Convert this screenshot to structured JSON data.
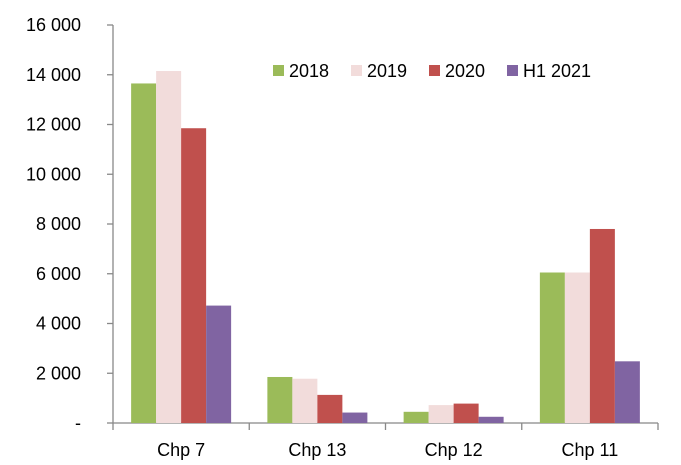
{
  "chart_data": {
    "type": "bar",
    "categories": [
      "Chp 7",
      "Chp 13",
      "Chp 12",
      "Chp 11"
    ],
    "series": [
      {
        "name": "2018",
        "color": "#9bbb59",
        "values": [
          13650,
          1850,
          450,
          6050
        ]
      },
      {
        "name": "2019",
        "color": "#f2dcdb",
        "values": [
          14150,
          1780,
          720,
          6050
        ]
      },
      {
        "name": "2020",
        "color": "#c0504d",
        "values": [
          11850,
          1130,
          780,
          7800
        ]
      },
      {
        "name": "H1 2021",
        "color": "#8064a2",
        "values": [
          4720,
          420,
          250,
          2480
        ]
      }
    ],
    "ylim": [
      0,
      16000
    ],
    "yticks": [
      0,
      2000,
      4000,
      6000,
      8000,
      10000,
      12000,
      14000,
      16000
    ],
    "ytick_labels": [
      "-",
      "2 000",
      "4 000",
      "6 000",
      "8 000",
      "10 000",
      "12 000",
      "14 000",
      "16 000"
    ],
    "legend_position": "top-right",
    "grid": false
  }
}
